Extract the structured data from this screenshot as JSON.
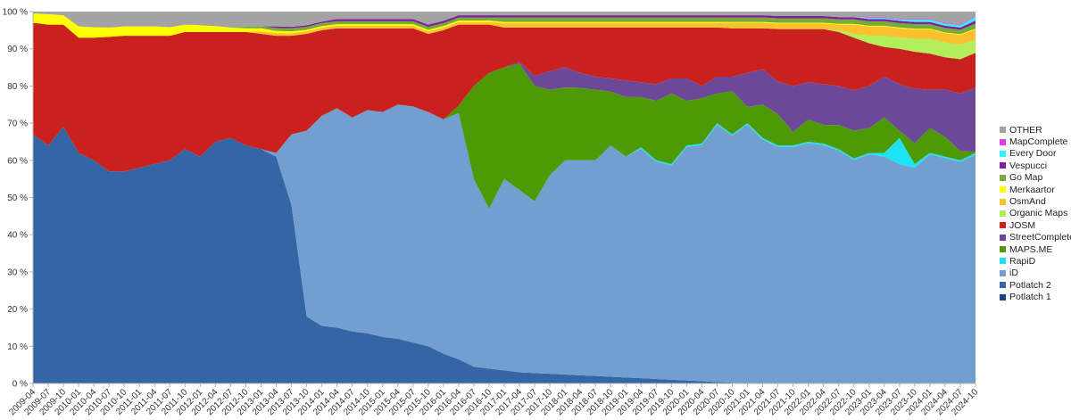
{
  "chart_data": {
    "type": "area",
    "stacked": true,
    "normalized_percent": true,
    "title": "",
    "xlabel": "",
    "ylabel": "",
    "ylim": [
      0,
      100
    ],
    "y_ticks": [
      "0 %",
      "10 %",
      "20 %",
      "30 %",
      "40 %",
      "50 %",
      "60 %",
      "70 %",
      "80 %",
      "90 %",
      "100 %"
    ],
    "grid": false,
    "legend_position": "right",
    "categories": [
      "2009-04",
      "2009-07",
      "2009-10",
      "2010-01",
      "2010-04",
      "2010-07",
      "2010-10",
      "2011-01",
      "2011-04",
      "2011-07",
      "2011-10",
      "2012-01",
      "2012-04",
      "2012-07",
      "2012-10",
      "2013-01",
      "2013-04",
      "2013-07",
      "2013-10",
      "2014-01",
      "2014-04",
      "2014-07",
      "2014-10",
      "2015-01",
      "2015-04",
      "2015-07",
      "2015-10",
      "2016-01",
      "2016-04",
      "2016-07",
      "2016-10",
      "2017-01",
      "2017-04",
      "2017-07",
      "2017-10",
      "2018-01",
      "2018-04",
      "2018-07",
      "2018-10",
      "2019-01",
      "2019-04",
      "2019-07",
      "2019-10",
      "2020-01",
      "2020-04",
      "2020-07",
      "2020-10",
      "2021-01",
      "2021-04",
      "2021-07",
      "2021-10",
      "2022-01",
      "2022-04",
      "2022-07",
      "2022-10",
      "2023-01",
      "2023-04",
      "2023-07",
      "2023-10",
      "2024-01",
      "2024-04",
      "2024-07",
      "2024-10"
    ],
    "series": [
      {
        "name": "Potlatch 1",
        "color": "#1c4288",
        "values": [
          0,
          0,
          0,
          0,
          0,
          0,
          0,
          0,
          0,
          0,
          0,
          0,
          0,
          0,
          0,
          0,
          0,
          0,
          0,
          0,
          0,
          0,
          0,
          0,
          0,
          0,
          0,
          0,
          0,
          0,
          0,
          0,
          0,
          0,
          0,
          0,
          0,
          0,
          0,
          0,
          0,
          0,
          0,
          0,
          0,
          0,
          0,
          0,
          0,
          0,
          0,
          0,
          0,
          0,
          0,
          0,
          0,
          0,
          0,
          0,
          0,
          0,
          0
        ]
      },
      {
        "name": "Potlatch 2",
        "color": "#3465a4",
        "values": [
          67,
          64,
          69,
          62,
          60,
          57,
          57,
          58,
          59,
          60,
          63,
          61,
          65,
          66,
          64,
          63,
          61,
          48,
          18,
          15.5,
          15,
          14,
          13.5,
          12.5,
          12,
          11,
          10,
          8,
          6.5,
          4.5,
          4,
          3.5,
          3,
          2.8,
          2.6,
          2.4,
          2.2,
          2,
          1.8,
          1.6,
          1.4,
          1.2,
          1,
          0.8,
          0.6,
          0.4,
          0.2,
          0,
          0,
          0,
          0,
          0,
          0,
          0,
          0,
          0,
          0,
          0,
          0,
          0,
          0,
          0,
          0
        ]
      },
      {
        "name": "iD",
        "color": "#729fcf",
        "values": [
          0,
          0,
          0,
          0,
          0,
          0,
          0,
          0,
          0,
          0,
          0,
          0,
          0,
          0,
          0,
          0,
          1,
          19,
          50,
          56.5,
          59,
          57.5,
          60,
          60.5,
          63,
          63.5,
          63,
          63,
          66.2,
          50.5,
          43,
          51.5,
          49,
          46.2,
          53.4,
          57.6,
          57.8,
          58,
          62.2,
          59.4,
          61.7,
          58.4,
          57.6,
          62.8,
          63.5,
          69.2,
          66.4,
          69.6,
          65.6,
          63.6,
          63.6,
          64.6,
          64.1,
          62.6,
          60.1,
          61.6,
          61,
          59,
          58,
          61.6,
          60.6,
          59.6,
          61.5
        ]
      },
      {
        "name": "RapiD",
        "color": "#1ee3f5",
        "values": [
          0,
          0,
          0,
          0,
          0,
          0,
          0,
          0,
          0,
          0,
          0,
          0,
          0,
          0,
          0,
          0,
          0,
          0,
          0,
          0,
          0,
          0,
          0,
          0,
          0,
          0,
          0,
          0,
          0,
          0,
          0,
          0,
          0,
          0,
          0,
          0,
          0,
          0,
          0,
          0,
          0.4,
          0.4,
          0.4,
          0.4,
          0.4,
          0.4,
          0.4,
          0.4,
          0.4,
          0.4,
          0.4,
          0.4,
          0.4,
          0.4,
          0.4,
          0.4,
          1,
          7,
          1,
          0.4,
          0.4,
          0.4,
          0.5
        ]
      },
      {
        "name": "MAPS.ME",
        "color": "#4e9a06",
        "values": [
          0,
          0,
          0,
          0,
          0,
          0,
          0,
          0,
          0,
          0,
          0,
          0,
          0,
          0,
          0,
          0,
          0,
          0,
          0,
          0,
          0,
          0,
          0,
          0,
          0,
          0,
          0,
          0,
          2,
          25,
          36.5,
          30,
          34,
          31,
          23,
          19.6,
          19.5,
          19,
          14.5,
          16,
          13.5,
          16,
          19,
          12,
          12.2,
          8,
          11.6,
          4.4,
          9,
          8.4,
          3.6,
          6,
          5,
          6.5,
          7.5,
          6.7,
          9.5,
          2,
          5.6,
          6.7,
          5.3,
          2.5,
          0.3
        ]
      },
      {
        "name": "StreetComplete",
        "color": "#6d4899",
        "values": [
          0,
          0,
          0,
          0,
          0,
          0,
          0,
          0,
          0,
          0,
          0,
          0,
          0,
          0,
          0,
          0,
          0,
          0,
          0,
          0,
          0,
          0,
          0,
          0,
          0,
          0,
          0,
          0,
          0,
          0,
          0,
          0,
          0.5,
          2.7,
          5,
          5.4,
          4,
          3.5,
          3.5,
          4.5,
          4,
          4.5,
          4,
          6,
          3.3,
          4.5,
          3.9,
          9.1,
          9.5,
          8.8,
          12.4,
          10,
          11,
          10.5,
          10.8,
          11.3,
          11,
          12.5,
          14.7,
          10.3,
          12.7,
          15.5,
          17.2
        ]
      },
      {
        "name": "JOSM",
        "color": "#c9211e",
        "values": [
          30,
          32.5,
          27.5,
          31,
          33,
          36.2,
          36.5,
          35.5,
          34.5,
          33.5,
          31.5,
          33.5,
          29.5,
          28.5,
          30.5,
          31,
          31.5,
          26.5,
          26,
          23,
          21.5,
          24,
          22,
          22.5,
          20.5,
          21,
          21,
          24,
          21.8,
          16.5,
          13,
          10.7,
          9.2,
          13,
          11.7,
          10.7,
          12.2,
          13.2,
          13.7,
          14.2,
          14.7,
          15.2,
          13.7,
          13.7,
          15.7,
          13.2,
          13,
          12,
          11,
          14.1,
          15.3,
          14.3,
          14.8,
          14.5,
          14.2,
          11.5,
          8,
          9.5,
          9.9,
          9.7,
          8.7,
          9.2,
          9.4
        ]
      },
      {
        "name": "Organic Maps",
        "color": "#b2ef5a",
        "values": [
          0,
          0,
          0,
          0,
          0,
          0,
          0,
          0,
          0,
          0,
          0,
          0,
          0,
          0,
          0,
          0,
          0,
          0,
          0,
          0,
          0,
          0,
          0,
          0,
          0,
          0,
          0,
          0,
          0,
          0,
          0,
          0,
          0,
          0,
          0,
          0,
          0,
          0,
          0,
          0,
          0,
          0,
          0,
          0,
          0,
          0,
          0,
          0,
          0,
          0,
          0,
          0,
          0,
          0.5,
          1,
          2,
          3,
          3,
          3.5,
          4,
          4,
          4,
          3.5
        ]
      },
      {
        "name": "OsmAnd",
        "color": "#fbc02d",
        "values": [
          0,
          0,
          0,
          0,
          0,
          0,
          0,
          0,
          0,
          0,
          0,
          0,
          0,
          0,
          0,
          0.7,
          0.7,
          0.7,
          0.7,
          0.7,
          0.7,
          0.7,
          0.7,
          0.7,
          0.7,
          0.7,
          0.7,
          0.7,
          0.7,
          0.7,
          0.7,
          1.2,
          1.2,
          1.2,
          1.2,
          1.2,
          1.2,
          1.2,
          1.2,
          1.2,
          1.2,
          1.2,
          1.2,
          1.2,
          1.2,
          1.2,
          1.5,
          1.5,
          1.5,
          1.5,
          1.5,
          1.5,
          1.5,
          1.5,
          2.5,
          2.5,
          2.5,
          2.5,
          2.5,
          2.5,
          2.5,
          2.5,
          2.8
        ]
      },
      {
        "name": "Merkaartor",
        "color": "#ffff00",
        "values": [
          2.5,
          2.8,
          2.5,
          3,
          2.8,
          2.5,
          2.5,
          2.5,
          2.5,
          2.3,
          2,
          1.8,
          1.6,
          1.2,
          1,
          0.8,
          0.6,
          0.5,
          0.4,
          0.4,
          0.4,
          0.4,
          0.4,
          0.4,
          0.4,
          0.4,
          0.4,
          0.4,
          0.4,
          0.4,
          0.4,
          0.3,
          0.3,
          0.3,
          0.3,
          0.3,
          0.3,
          0.3,
          0.3,
          0.3,
          0.3,
          0.3,
          0.3,
          0.3,
          0.3,
          0.3,
          0.2,
          0.2,
          0.2,
          0.2,
          0.2,
          0.2,
          0.2,
          0.2,
          0.2,
          0.2,
          0.2,
          0.2,
          0.2,
          0.2,
          0.2,
          0.2,
          0.2
        ]
      },
      {
        "name": "Go Map",
        "color": "#77a93b",
        "values": [
          0,
          0,
          0,
          0,
          0,
          0,
          0,
          0,
          0,
          0,
          0,
          0,
          0,
          0,
          0.5,
          0.5,
          0.8,
          0.8,
          0.8,
          0.8,
          0.8,
          0.8,
          0.8,
          0.8,
          0.8,
          0.8,
          0.8,
          0.8,
          0.8,
          0.8,
          0.8,
          1.2,
          1.2,
          1.2,
          1.2,
          1.2,
          1.2,
          1.2,
          1.2,
          1.2,
          1.2,
          1.2,
          1.2,
          1.2,
          1.2,
          1.2,
          1.2,
          1.2,
          1.2,
          1.2,
          1.2,
          1.2,
          1.2,
          1.2,
          1.2,
          1.2,
          1.2,
          1.2,
          1.2,
          1.2,
          1.2,
          1.2,
          1.4
        ]
      },
      {
        "name": "Vespucci",
        "color": "#7f1f9a",
        "values": [
          0,
          0,
          0,
          0,
          0,
          0,
          0,
          0,
          0,
          0,
          0,
          0,
          0,
          0,
          0,
          0,
          0.4,
          0.4,
          0.4,
          0.4,
          0.6,
          0.6,
          0.6,
          0.6,
          0.6,
          0.6,
          0.6,
          0.6,
          0.6,
          0.6,
          0.6,
          0.6,
          0.6,
          0.6,
          0.6,
          0.6,
          0.6,
          0.6,
          0.6,
          0.6,
          0.6,
          0.6,
          0.6,
          0.6,
          0.6,
          0.6,
          0.6,
          0.6,
          0.6,
          0.6,
          0.6,
          0.6,
          0.6,
          0.6,
          0.6,
          0.6,
          0.6,
          0.6,
          0.6,
          0.6,
          0.6,
          0.6,
          0.8
        ]
      },
      {
        "name": "Every Door",
        "color": "#33f0ff",
        "values": [
          0,
          0,
          0,
          0,
          0,
          0,
          0,
          0,
          0,
          0,
          0,
          0,
          0,
          0,
          0,
          0,
          0,
          0,
          0,
          0,
          0,
          0,
          0,
          0,
          0,
          0,
          0,
          0,
          0,
          0,
          0,
          0,
          0,
          0,
          0,
          0,
          0,
          0,
          0,
          0,
          0,
          0,
          0,
          0,
          0,
          0,
          0,
          0,
          0,
          0,
          0,
          0,
          0,
          0,
          0,
          0.3,
          0.3,
          0.3,
          0.6,
          0.6,
          0.6,
          0.6,
          1
        ]
      },
      {
        "name": "MapComplete",
        "color": "#e040e0",
        "values": [
          0,
          0,
          0,
          0,
          0,
          0,
          0,
          0,
          0,
          0,
          0,
          0,
          0,
          0,
          0,
          0,
          0,
          0,
          0,
          0,
          0,
          0,
          0,
          0,
          0,
          0,
          0,
          0,
          0,
          0,
          0,
          0,
          0,
          0,
          0,
          0,
          0,
          0,
          0,
          0,
          0,
          0,
          0,
          0,
          0,
          0,
          0,
          0,
          0,
          0,
          0,
          0,
          0,
          0,
          0,
          0.2,
          0.2,
          0.2,
          0.2,
          0.2,
          0.2,
          0.2,
          0.2
        ]
      },
      {
        "name": "OTHER",
        "color": "#a3a3a3",
        "values": [
          0.5,
          0.7,
          1,
          4,
          4.2,
          4.3,
          4,
          4,
          4,
          4.2,
          3.5,
          3.7,
          3.9,
          4.3,
          4,
          4,
          4,
          4.1,
          3.7,
          2.7,
          2,
          2,
          2,
          2,
          2,
          2,
          3.5,
          2.5,
          1,
          1,
          1,
          1,
          1,
          1,
          1,
          1,
          1,
          1,
          1,
          1,
          1,
          1,
          1,
          1,
          1,
          1,
          1,
          1,
          1,
          1.2,
          1.2,
          1.2,
          1.2,
          1.5,
          1.5,
          1.5,
          1.5,
          2,
          2,
          2,
          3,
          3.5,
          1.2
        ]
      }
    ]
  }
}
